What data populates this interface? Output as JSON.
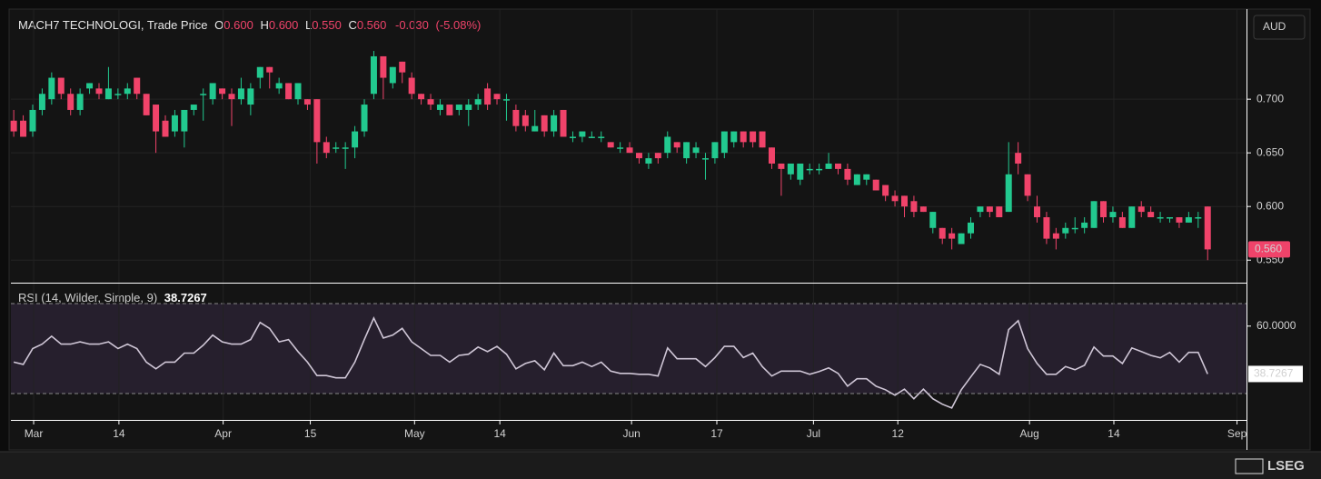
{
  "header": {
    "symbol": "MACH7 TECHNOLOGI, Trade Price",
    "ohlc": [
      {
        "key": "O",
        "value": 0.6,
        "label": "0.600"
      },
      {
        "key": "H",
        "value": 0.6,
        "label": "0.600"
      },
      {
        "key": "L",
        "value": 0.55,
        "label": "0.550"
      },
      {
        "key": "C",
        "value": 0.56,
        "label": "0.560"
      }
    ],
    "change": {
      "value": -0.03,
      "label": "-0.030"
    },
    "change_pct": {
      "value": -5.08,
      "label": "(-5.08%)"
    }
  },
  "currency": "AUD",
  "brand": "LSEG",
  "chart_data": [
    {
      "type": "candlestick",
      "up_color": "#22c98f",
      "down_color": "#f0436a",
      "grid": true,
      "ylim": [
        0.529,
        0.784
      ],
      "yticks": [
        {
          "value": 0.55,
          "label": "0.550"
        },
        {
          "value": 0.6,
          "label": "0.600"
        },
        {
          "value": 0.65,
          "label": "0.650"
        },
        {
          "value": 0.7,
          "label": "0.700"
        }
      ],
      "open": [
        0.68,
        0.68,
        0.67,
        0.69,
        0.7,
        0.72,
        0.705,
        0.69,
        0.71,
        0.71,
        0.7,
        0.705,
        0.705,
        0.72,
        0.705,
        0.695,
        0.68,
        0.67,
        0.67,
        0.69,
        0.705,
        0.7,
        0.71,
        0.705,
        0.7,
        0.695,
        0.72,
        0.73,
        0.71,
        0.715,
        0.7,
        0.7,
        0.7,
        0.66,
        0.655,
        0.655,
        0.655,
        0.67,
        0.705,
        0.74,
        0.715,
        0.735,
        0.72,
        0.705,
        0.7,
        0.69,
        0.695,
        0.69,
        0.69,
        0.695,
        0.71,
        0.705,
        0.7,
        0.69,
        0.685,
        0.67,
        0.685,
        0.67,
        0.69,
        0.665,
        0.665,
        0.665,
        0.665,
        0.66,
        0.655,
        0.655,
        0.65,
        0.64,
        0.65,
        0.65,
        0.66,
        0.645,
        0.65,
        0.645,
        0.645,
        0.65,
        0.66,
        0.67,
        0.67,
        0.67,
        0.655,
        0.64,
        0.63,
        0.625,
        0.635,
        0.635,
        0.635,
        0.64,
        0.635,
        0.62,
        0.625,
        0.625,
        0.62,
        0.61,
        0.61,
        0.605,
        0.6,
        0.58,
        0.58,
        0.575,
        0.565,
        0.575,
        0.595,
        0.6,
        0.6,
        0.595,
        0.65,
        0.63,
        0.6,
        0.59,
        0.575,
        0.575,
        0.58,
        0.58,
        0.58,
        0.605,
        0.59,
        0.59,
        0.58,
        0.6,
        0.595,
        0.59,
        0.59,
        0.59,
        0.585,
        0.59,
        0.6
      ],
      "high": [
        0.69,
        0.685,
        0.695,
        0.71,
        0.725,
        0.72,
        0.71,
        0.71,
        0.715,
        0.715,
        0.73,
        0.71,
        0.715,
        0.72,
        0.705,
        0.695,
        0.685,
        0.69,
        0.69,
        0.695,
        0.71,
        0.715,
        0.71,
        0.71,
        0.72,
        0.715,
        0.73,
        0.73,
        0.72,
        0.715,
        0.715,
        0.7,
        0.7,
        0.665,
        0.66,
        0.66,
        0.675,
        0.7,
        0.745,
        0.74,
        0.73,
        0.735,
        0.725,
        0.705,
        0.705,
        0.7,
        0.695,
        0.695,
        0.7,
        0.705,
        0.715,
        0.705,
        0.705,
        0.695,
        0.69,
        0.69,
        0.685,
        0.69,
        0.69,
        0.67,
        0.67,
        0.67,
        0.67,
        0.66,
        0.66,
        0.66,
        0.65,
        0.65,
        0.65,
        0.67,
        0.66,
        0.66,
        0.66,
        0.65,
        0.66,
        0.67,
        0.67,
        0.67,
        0.67,
        0.67,
        0.655,
        0.64,
        0.64,
        0.64,
        0.64,
        0.64,
        0.65,
        0.64,
        0.64,
        0.63,
        0.63,
        0.625,
        0.62,
        0.615,
        0.61,
        0.61,
        0.6,
        0.595,
        0.58,
        0.58,
        0.575,
        0.59,
        0.6,
        0.6,
        0.6,
        0.66,
        0.66,
        0.63,
        0.61,
        0.595,
        0.58,
        0.585,
        0.59,
        0.59,
        0.605,
        0.605,
        0.6,
        0.595,
        0.6,
        0.605,
        0.6,
        0.595,
        0.59,
        0.59,
        0.595,
        0.595,
        0.6
      ],
      "low": [
        0.665,
        0.665,
        0.665,
        0.685,
        0.695,
        0.7,
        0.685,
        0.685,
        0.705,
        0.7,
        0.7,
        0.7,
        0.7,
        0.7,
        0.685,
        0.65,
        0.665,
        0.665,
        0.655,
        0.685,
        0.68,
        0.695,
        0.7,
        0.675,
        0.695,
        0.685,
        0.71,
        0.71,
        0.705,
        0.7,
        0.695,
        0.69,
        0.64,
        0.645,
        0.65,
        0.635,
        0.645,
        0.665,
        0.7,
        0.7,
        0.71,
        0.715,
        0.7,
        0.695,
        0.69,
        0.685,
        0.685,
        0.685,
        0.675,
        0.69,
        0.69,
        0.695,
        0.68,
        0.67,
        0.67,
        0.67,
        0.665,
        0.665,
        0.665,
        0.66,
        0.66,
        0.665,
        0.66,
        0.655,
        0.65,
        0.65,
        0.64,
        0.635,
        0.64,
        0.645,
        0.65,
        0.64,
        0.645,
        0.625,
        0.64,
        0.645,
        0.655,
        0.655,
        0.655,
        0.655,
        0.635,
        0.61,
        0.625,
        0.62,
        0.63,
        0.63,
        0.635,
        0.63,
        0.62,
        0.62,
        0.62,
        0.615,
        0.605,
        0.6,
        0.59,
        0.59,
        0.595,
        0.575,
        0.565,
        0.56,
        0.565,
        0.57,
        0.59,
        0.59,
        0.59,
        0.595,
        0.63,
        0.605,
        0.585,
        0.565,
        0.56,
        0.57,
        0.575,
        0.575,
        0.58,
        0.585,
        0.585,
        0.58,
        0.58,
        0.59,
        0.59,
        0.585,
        0.585,
        0.58,
        0.585,
        0.58,
        0.55
      ],
      "close": [
        0.67,
        0.665,
        0.69,
        0.705,
        0.72,
        0.705,
        0.69,
        0.705,
        0.715,
        0.705,
        0.71,
        0.705,
        0.71,
        0.705,
        0.685,
        0.67,
        0.665,
        0.685,
        0.69,
        0.695,
        0.705,
        0.715,
        0.705,
        0.7,
        0.71,
        0.71,
        0.73,
        0.725,
        0.715,
        0.7,
        0.715,
        0.695,
        0.66,
        0.65,
        0.655,
        0.655,
        0.67,
        0.695,
        0.74,
        0.72,
        0.73,
        0.725,
        0.705,
        0.7,
        0.695,
        0.695,
        0.685,
        0.695,
        0.695,
        0.7,
        0.695,
        0.7,
        0.7,
        0.675,
        0.675,
        0.675,
        0.67,
        0.685,
        0.665,
        0.665,
        0.67,
        0.665,
        0.665,
        0.655,
        0.655,
        0.65,
        0.645,
        0.645,
        0.645,
        0.665,
        0.655,
        0.66,
        0.655,
        0.645,
        0.66,
        0.67,
        0.67,
        0.66,
        0.66,
        0.655,
        0.64,
        0.635,
        0.64,
        0.64,
        0.635,
        0.635,
        0.64,
        0.635,
        0.625,
        0.63,
        0.63,
        0.615,
        0.61,
        0.605,
        0.6,
        0.595,
        0.595,
        0.595,
        0.57,
        0.57,
        0.575,
        0.585,
        0.6,
        0.595,
        0.59,
        0.63,
        0.64,
        0.61,
        0.59,
        0.57,
        0.57,
        0.58,
        0.58,
        0.585,
        0.605,
        0.59,
        0.595,
        0.58,
        0.6,
        0.595,
        0.59,
        0.59,
        0.59,
        0.585,
        0.59,
        0.59,
        0.56
      ]
    },
    {
      "type": "line",
      "name": "RSI (14, Wilder, Simple, 9)",
      "color": "#cfc6d6",
      "band_color": "#5a3f78",
      "ylim": [
        18.3,
        78.9
      ],
      "yticks": [
        {
          "value": 60,
          "label": "60.0000"
        }
      ],
      "bands": [
        70,
        30
      ],
      "xlim": [
        -0.3,
        130.1
      ],
      "xticks": [
        {
          "value": 2.1,
          "label": "Mar"
        },
        {
          "value": 11.1,
          "label": "14"
        },
        {
          "value": 22.1,
          "label": "Apr"
        },
        {
          "value": 31.3,
          "label": "15"
        },
        {
          "value": 42.3,
          "label": "May"
        },
        {
          "value": 51.3,
          "label": "14"
        },
        {
          "value": 65.2,
          "label": "Jun"
        },
        {
          "value": 74.2,
          "label": "17"
        },
        {
          "value": 84.4,
          "label": "Jul"
        },
        {
          "value": 93.3,
          "label": "12"
        },
        {
          "value": 107.2,
          "label": "Aug"
        },
        {
          "value": 116.1,
          "label": "14"
        },
        {
          "value": 129.1,
          "label": "Sep"
        }
      ],
      "values": [
        44,
        43,
        50,
        52,
        55.5,
        52,
        52,
        53,
        52,
        52,
        53,
        50,
        52,
        50,
        44,
        41,
        44,
        44,
        48,
        48,
        51.5,
        56,
        53,
        52,
        52,
        54,
        61.6,
        59,
        53,
        54,
        48.7,
        44,
        38,
        38,
        37,
        37,
        44,
        54,
        63.6,
        54.7,
        56,
        59,
        53,
        50,
        47,
        47,
        44,
        47,
        47.5,
        50.7,
        48.7,
        51,
        47.5,
        41,
        43.4,
        44.6,
        40.6,
        48,
        42.4,
        42.4,
        44,
        42,
        44,
        40,
        39,
        39,
        38.6,
        38.6,
        37.8,
        50.3,
        45.5,
        45.5,
        45.5,
        42,
        46,
        51,
        51,
        46,
        48,
        42,
        37.8,
        40,
        40,
        40,
        38.6,
        39.8,
        41.4,
        39,
        33.3,
        36.6,
        36.6,
        33.3,
        31.7,
        29.3,
        32,
        27.7,
        32,
        27.7,
        25.3,
        23.6,
        31.7,
        37.4,
        43,
        41.4,
        38.6,
        58.4,
        62.4,
        50,
        43.4,
        38.6,
        38.6,
        42,
        40.6,
        42.6,
        50.7,
        46.7,
        46.7,
        43.4,
        50.3,
        48.7,
        47,
        45.9,
        48.3,
        44,
        48.3,
        48.3,
        38.7267
      ]
    }
  ]
}
